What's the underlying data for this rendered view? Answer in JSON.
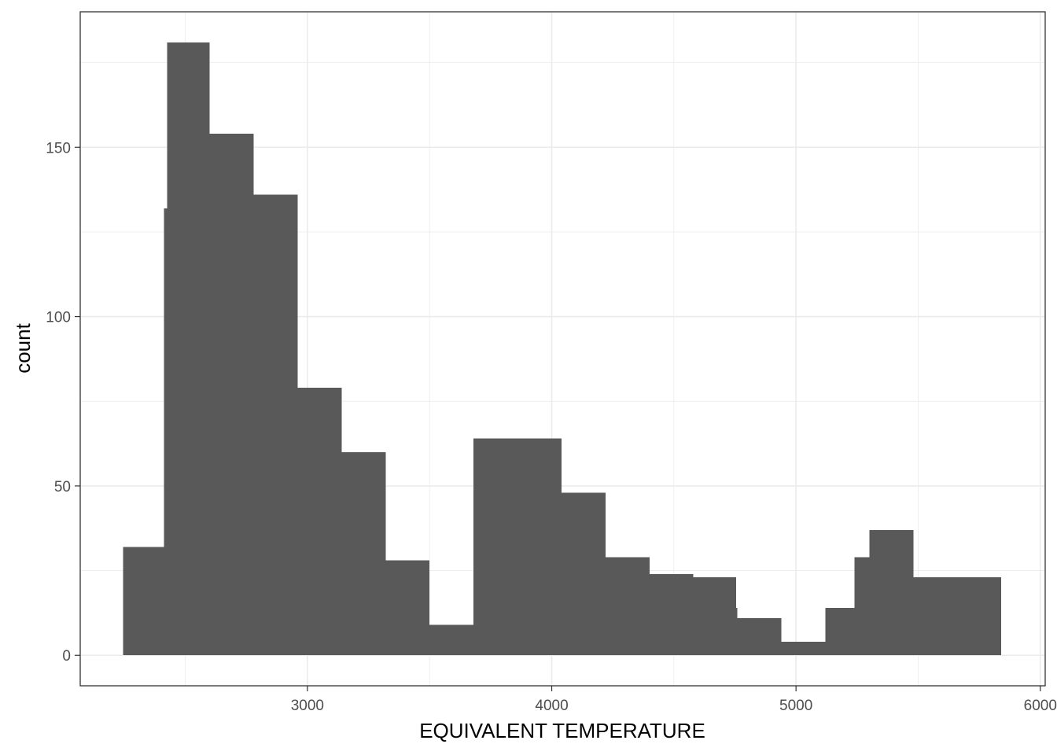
{
  "chart_data": {
    "type": "bar",
    "subtype": "histogram",
    "title": "",
    "xlabel": "EQUIVALENT TEMPERATURE",
    "ylabel": "count",
    "xlim": [
      2070,
      6020
    ],
    "ylim": [
      -9,
      190
    ],
    "x_ticks": [
      3000,
      4000,
      5000,
      6000
    ],
    "x_tick_labels": [
      "3000",
      "4000",
      "5000",
      "6000"
    ],
    "y_ticks": [
      0,
      50,
      100,
      150
    ],
    "y_tick_labels": [
      "0",
      "50",
      "100",
      "150"
    ],
    "grid": true,
    "legend": "none",
    "bar_color": "#595959",
    "bins": [
      {
        "x_start": 2245,
        "x_end": 2413,
        "count": 32
      },
      {
        "x_start": 2413,
        "x_end": 2425,
        "count": 132
      },
      {
        "x_start": 2425,
        "x_end": 2600,
        "count": 181
      },
      {
        "x_start": 2600,
        "x_end": 2780,
        "count": 154
      },
      {
        "x_start": 2780,
        "x_end": 2960,
        "count": 136
      },
      {
        "x_start": 2960,
        "x_end": 3140,
        "count": 79
      },
      {
        "x_start": 3140,
        "x_end": 3320,
        "count": 60
      },
      {
        "x_start": 3320,
        "x_end": 3500,
        "count": 28
      },
      {
        "x_start": 3500,
        "x_end": 3680,
        "count": 9
      },
      {
        "x_start": 3680,
        "x_end": 4040,
        "count": 64
      },
      {
        "x_start": 4040,
        "x_end": 4220,
        "count": 48
      },
      {
        "x_start": 4220,
        "x_end": 4400,
        "count": 29
      },
      {
        "x_start": 4400,
        "x_end": 4580,
        "count": 24
      },
      {
        "x_start": 4580,
        "x_end": 4755,
        "count": 23
      },
      {
        "x_start": 4755,
        "x_end": 4760,
        "count": 14
      },
      {
        "x_start": 4760,
        "x_end": 4940,
        "count": 11
      },
      {
        "x_start": 4940,
        "x_end": 5120,
        "count": 4
      },
      {
        "x_start": 5120,
        "x_end": 5240,
        "count": 14
      },
      {
        "x_start": 5240,
        "x_end": 5300,
        "count": 29
      },
      {
        "x_start": 5300,
        "x_end": 5480,
        "count": 37
      },
      {
        "x_start": 5480,
        "x_end": 5840,
        "count": 23
      }
    ]
  }
}
